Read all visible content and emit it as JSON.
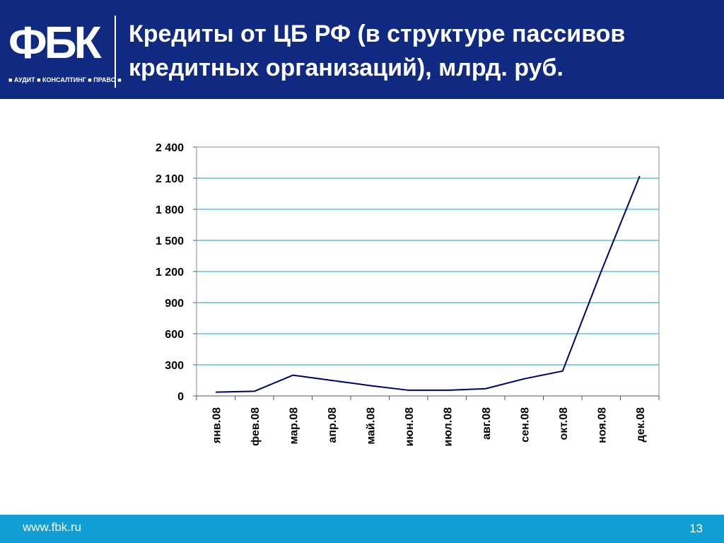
{
  "header": {
    "logo": "ФБК",
    "logo_tagline": "■ АУДИТ ■ КОНСАЛТИНГ ■ ПРАВО ■",
    "title": "Кредиты от ЦБ РФ (в структуре пассивов кредитных организаций), млрд. руб.",
    "background_color": "#102a82"
  },
  "footer": {
    "url": "www.fbk.ru",
    "page_number": "13",
    "background_color": "#0f9fd4"
  },
  "chart_data": {
    "type": "line",
    "title": "",
    "xlabel": "",
    "ylabel": "",
    "categories": [
      "янв.08",
      "фев.08",
      "мар.08",
      "апр.08",
      "май.08",
      "июн.08",
      "июл.08",
      "авг.08",
      "сен.08",
      "окт.08",
      "ноя.08",
      "дек.08"
    ],
    "series": [
      {
        "values": [
          37,
          45,
          200,
          150,
          100,
          55,
          55,
          70,
          165,
          240,
          1200,
          2120
        ],
        "color": "#000066"
      }
    ],
    "ylim": [
      0,
      2400
    ],
    "yticks": [
      0,
      300,
      600,
      900,
      1200,
      1500,
      1800,
      2100,
      2400
    ],
    "ytick_labels": [
      "0",
      "300",
      "600",
      "900",
      "1 200",
      "1 500",
      "1 800",
      "2 100",
      "2 400"
    ],
    "grid": true,
    "legend": "none"
  }
}
